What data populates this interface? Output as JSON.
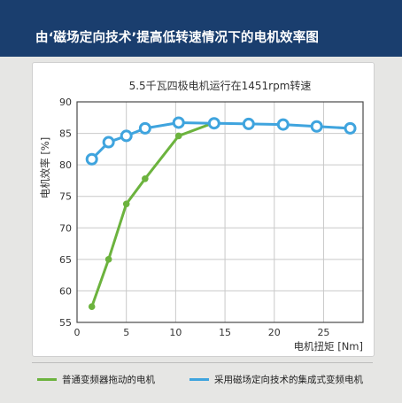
{
  "header": {
    "title": "由‘磁场定向技术’提高低转速情况下的电机效率图"
  },
  "colors": {
    "header_bg": "#1a3e6e",
    "green_series": "#6cb33e",
    "blue_series": "#3fa4de"
  },
  "chart_data": {
    "type": "line",
    "title": "5.5千瓦四极电机运行在1451rpm转速",
    "xlabel": "电机扭矩 [Nm]",
    "ylabel": "电机效率 [%]",
    "xlim": [
      0,
      29
    ],
    "ylim": [
      55,
      90
    ],
    "x_ticks": [
      0,
      5,
      10,
      15,
      20,
      25
    ],
    "y_ticks": [
      55,
      60,
      65,
      70,
      75,
      80,
      85,
      90
    ],
    "grid": true,
    "legend_position": "bottom",
    "series": [
      {
        "name": "普通变频器拖动的电机",
        "color": "#6cb33e",
        "x": [
          1.5,
          3.2,
          5.0,
          6.9,
          10.3,
          13.9
        ],
        "y": [
          57.5,
          65.0,
          73.8,
          77.8,
          84.6,
          86.7
        ]
      },
      {
        "name": "采用磁场定向技术的集成式变频电机",
        "color": "#3fa4de",
        "x": [
          1.5,
          3.2,
          5.0,
          6.9,
          10.3,
          13.9,
          17.4,
          20.9,
          24.3,
          27.7
        ],
        "y": [
          80.9,
          83.6,
          84.6,
          85.8,
          86.7,
          86.6,
          86.5,
          86.4,
          86.1,
          85.8
        ]
      }
    ]
  }
}
